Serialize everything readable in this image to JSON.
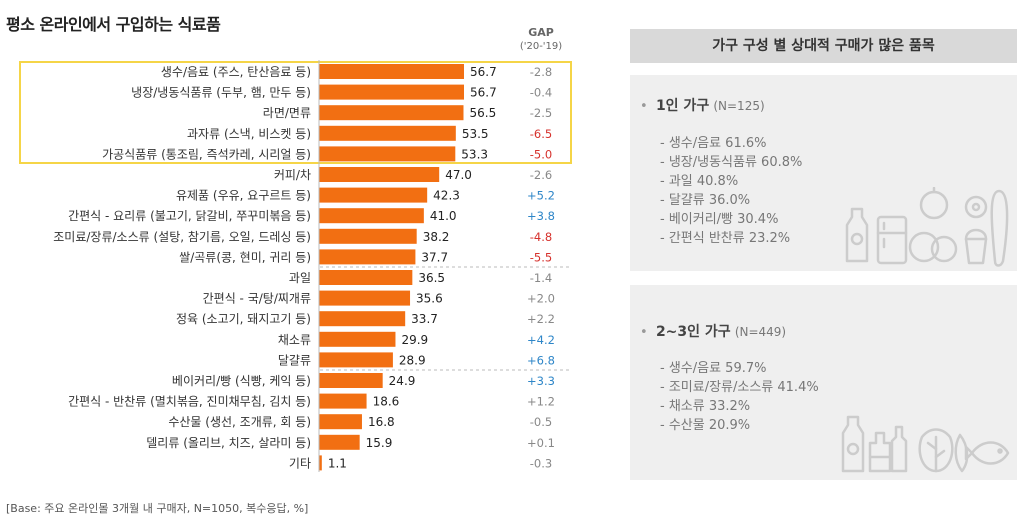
{
  "title": "평소 온라인에서 구입하는 식료품",
  "gap_header": {
    "label": "GAP",
    "years": "('20-'19)"
  },
  "footnote": "[Base: 주요 온라인몰 3개월 내 구매자, N=1050, 복수응답, %]",
  "colors": {
    "bar": "#f26f12",
    "highlight_border": "#f5d547",
    "positive": "#2e86c8",
    "negative": "#d6322d",
    "neutral": "#888888"
  },
  "chart_data": {
    "type": "bar",
    "orientation": "horizontal",
    "title": "평소 온라인에서 구입하는 식료품",
    "xlim": [
      0,
      60
    ],
    "categories": [
      "생수/음료 (주스, 탄산음료 등)",
      "냉장/냉동식품류 (두부, 햄, 만두 등)",
      "라면/면류",
      "과자류 (스낵, 비스켓 등)",
      "가공식품류 (통조림, 즉석카레, 시리얼 등)",
      "커피/차",
      "유제품 (우유, 요구르트 등)",
      "간편식 - 요리류 (불고기, 닭갈비, 쭈꾸미볶음 등)",
      "조미료/장류/소스류 (설탕, 참기름, 오일, 드레싱 등)",
      "쌀/곡류(콩, 현미, 귀리 등)",
      "과일",
      "간편식 - 국/탕/찌개류",
      "정육 (소고기, 돼지고기 등)",
      "채소류",
      "달걀류",
      "베이커리/빵 (식빵, 케익 등)",
      "간편식 - 반찬류 (멸치볶음, 진미채무침, 김치 등)",
      "수산물 (생선, 조개류, 회 등)",
      "델리류 (올리브, 치즈, 살라미 등)",
      "기타"
    ],
    "values": [
      56.7,
      56.7,
      56.5,
      53.5,
      53.3,
      47.0,
      42.3,
      41.0,
      38.2,
      37.7,
      36.5,
      35.6,
      33.7,
      29.9,
      28.9,
      24.9,
      18.6,
      16.8,
      15.9,
      1.1
    ],
    "value_labels": [
      "56.7",
      "56.7",
      "56.5",
      "53.5",
      "53.3",
      "47.0",
      "42.3",
      "41.0",
      "38.2",
      "37.7",
      "36.5",
      "35.6",
      "33.7",
      "29.9",
      "28.9",
      "24.9",
      "18.6",
      "16.8",
      "15.9",
      "1.1"
    ],
    "gap": [
      "-2.8",
      "-0.4",
      "-2.5",
      "-6.5",
      "-5.0",
      "-2.6",
      "+5.2",
      "+3.8",
      "-4.8",
      "-5.5",
      "-1.4",
      "+2.0",
      "+2.2",
      "+4.2",
      "+6.8",
      "+3.3",
      "+1.2",
      "-0.5",
      "+0.1",
      "-0.3"
    ],
    "gap_emphasis": [
      "neutral",
      "neutral",
      "neutral",
      "negative",
      "negative",
      "neutral",
      "positive",
      "positive",
      "negative",
      "negative",
      "neutral",
      "neutral",
      "neutral",
      "positive",
      "positive",
      "positive",
      "neutral",
      "neutral",
      "neutral",
      "neutral"
    ],
    "highlighted_top": 5,
    "group_dividers_after": [
      9,
      14
    ]
  },
  "panel": {
    "title": "가구 구성 별 상대적 구매가 많은 품목",
    "groups": [
      {
        "name": "1인 가구",
        "n": "(N=125)",
        "items": [
          "- 생수/음료 61.6%",
          "- 냉장/냉동식품류 60.8%",
          "- 과일 40.8%",
          "- 달걀류 36.0%",
          "- 베이커리/빵 30.4%",
          "- 간편식 반찬류 23.2%"
        ]
      },
      {
        "name": "2~3인 가구",
        "n": "(N=449)",
        "items": [
          "- 생수/음료 59.7%",
          "- 조미료/장류/소스류 41.4%",
          "- 채소류 33.2%",
          "- 수산물 20.9%"
        ]
      }
    ]
  }
}
